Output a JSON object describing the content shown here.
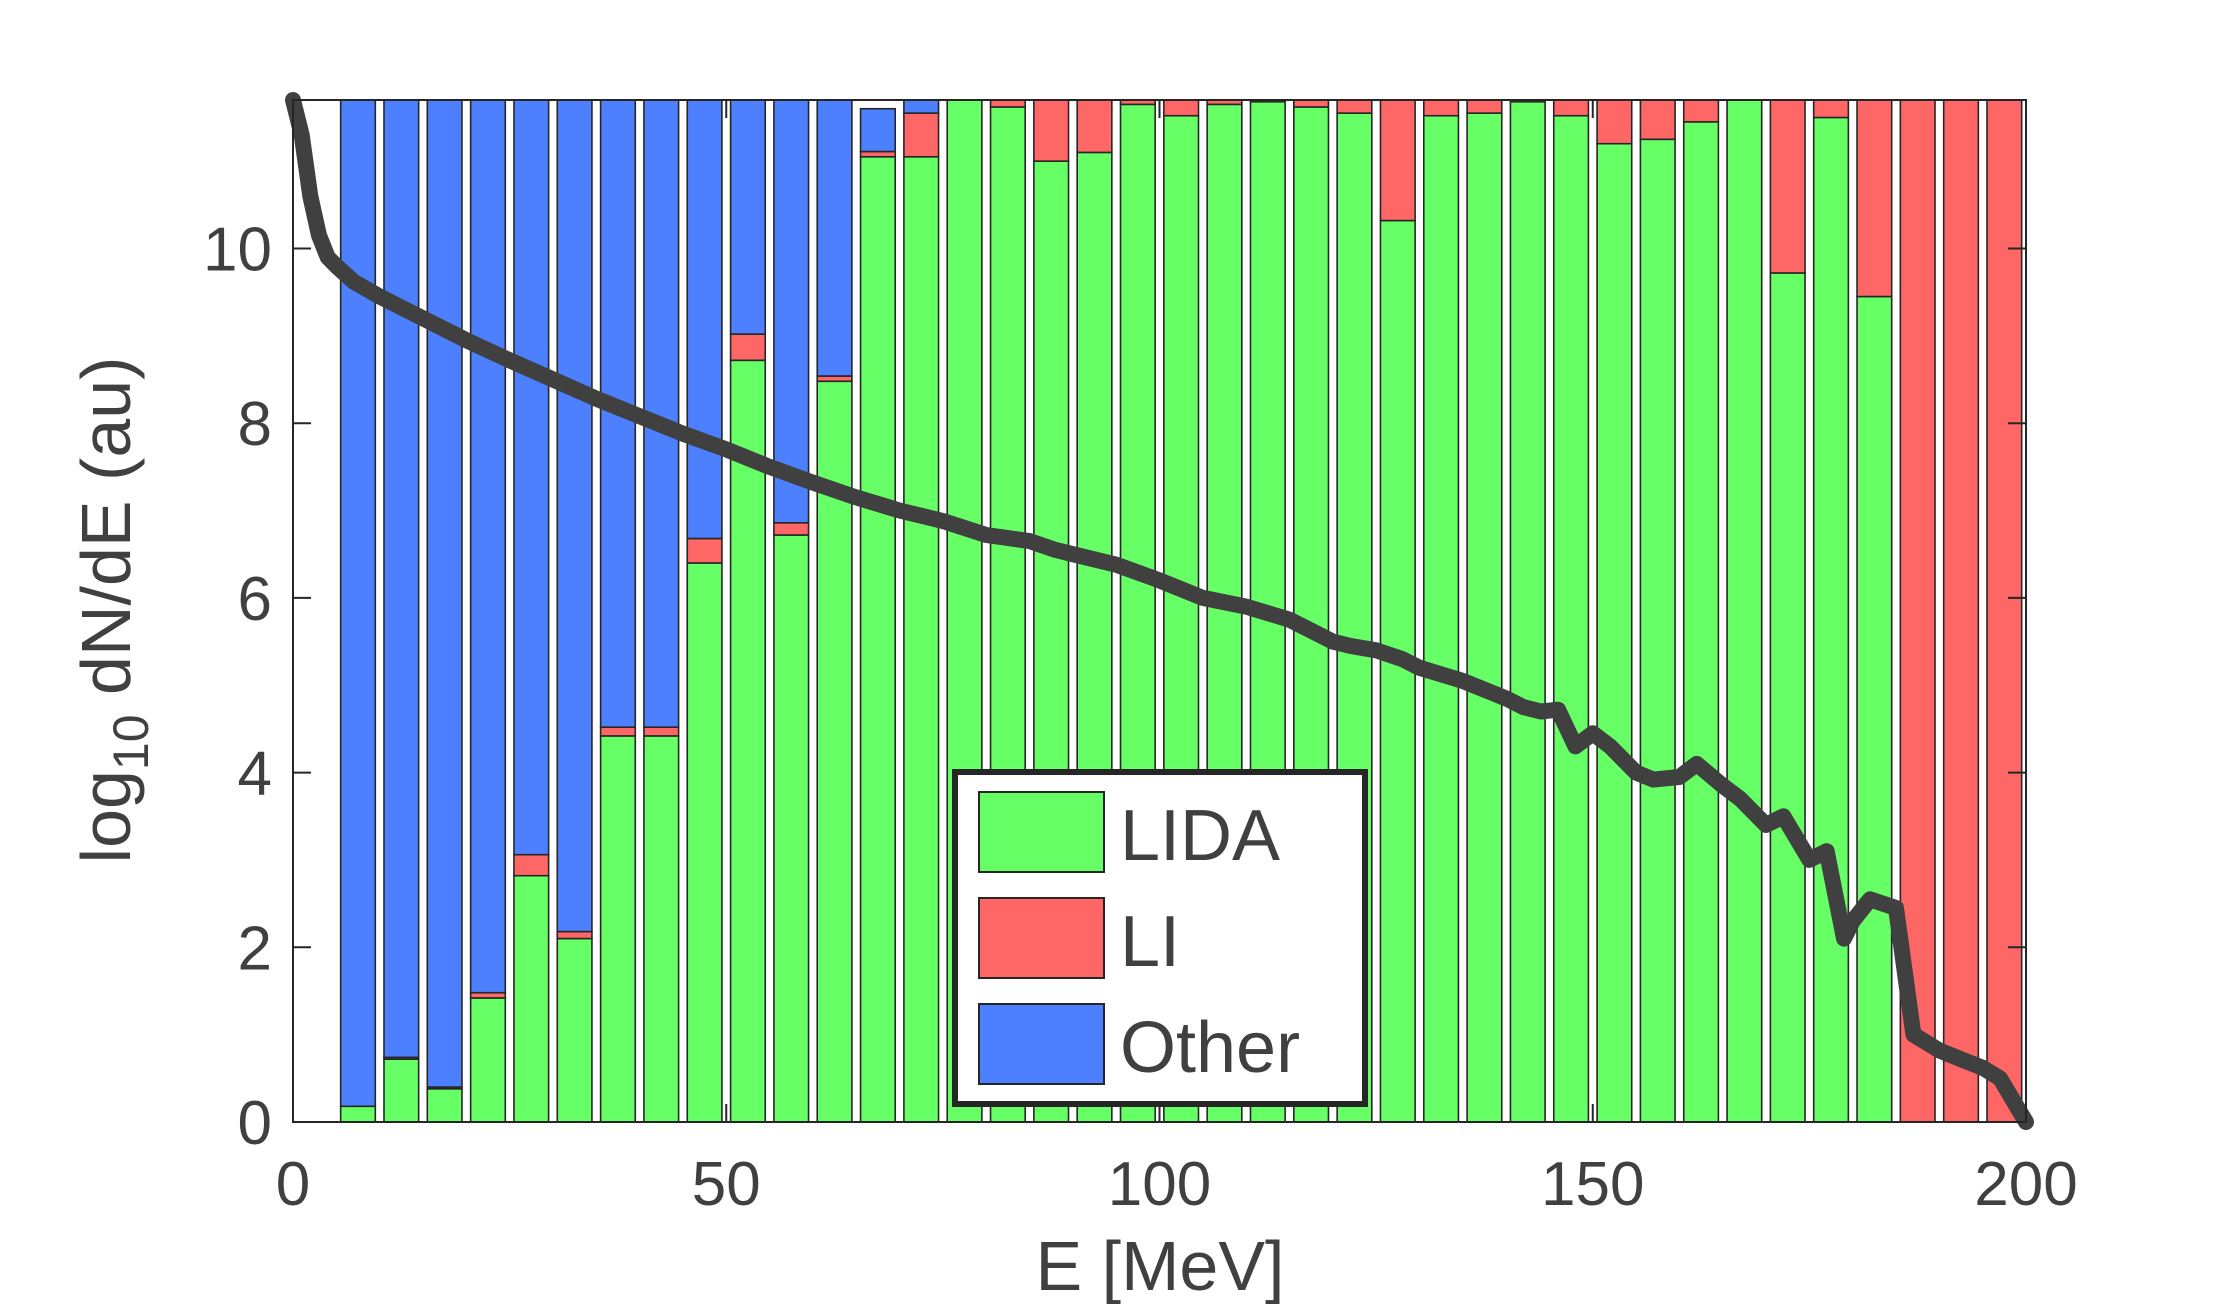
{
  "chart_data": {
    "type": "bar",
    "stacked": true,
    "xlabel": "E  [MeV]",
    "ylabel_main": "log",
    "ylabel_sub": "10",
    "ylabel_rest": " dN/dE (au)",
    "xlim": [
      0,
      200
    ],
    "ylim": [
      0,
      11.7
    ],
    "xticks": [
      0,
      50,
      100,
      150,
      200
    ],
    "yticks": [
      0,
      2,
      4,
      6,
      8,
      10
    ],
    "bar_width": 4,
    "categories": [
      7.5,
      12.5,
      17.5,
      22.5,
      27.5,
      32.5,
      37.5,
      42.5,
      47.5,
      52.5,
      57.5,
      62.5,
      67.5,
      72.5,
      77.5,
      82.5,
      87.5,
      92.5,
      97.5,
      102.5,
      107.5,
      112.5,
      117.5,
      122.5,
      127.5,
      132.5,
      137.5,
      142.5,
      147.5,
      152.5,
      157.5,
      162.5,
      167.5,
      172.5,
      177.5,
      182.5,
      187.5,
      192.5,
      197.5
    ],
    "series": [
      {
        "name": "LIDA",
        "color": "#66ff66",
        "values": [
          0.18,
          0.72,
          0.38,
          1.42,
          2.82,
          2.1,
          4.42,
          4.42,
          6.4,
          8.72,
          6.72,
          8.48,
          11.05,
          11.05,
          11.7,
          11.62,
          11.0,
          11.1,
          11.65,
          11.52,
          11.65,
          11.68,
          11.62,
          11.55,
          10.32,
          11.52,
          11.55,
          11.68,
          11.52,
          11.2,
          11.25,
          11.45,
          11.7,
          9.72,
          11.5,
          9.45,
          0,
          0,
          0
        ]
      },
      {
        "name": "LI",
        "color": "#ff6666",
        "values": [
          0,
          0.02,
          0.02,
          0.06,
          0.24,
          0.08,
          0.1,
          0.1,
          0.28,
          0.3,
          0.14,
          0.06,
          0.06,
          0.5,
          0.0,
          0.08,
          0.7,
          0.6,
          0.05,
          0.18,
          0.05,
          0.02,
          0.08,
          0.15,
          1.38,
          0.18,
          0.15,
          0.02,
          0.18,
          0.5,
          0.45,
          0.25,
          0.0,
          1.98,
          0.2,
          2.25,
          11.7,
          11.7,
          11.7
        ]
      },
      {
        "name": "Other",
        "color": "#4d80ff",
        "values": [
          11.52,
          10.96,
          11.3,
          10.22,
          8.64,
          9.52,
          7.18,
          7.18,
          5.02,
          2.68,
          4.84,
          3.16,
          0.49,
          0.15,
          0,
          0,
          0,
          0,
          0,
          0,
          0,
          0,
          0,
          0,
          0,
          0,
          0,
          0,
          0,
          0,
          0,
          0,
          0,
          0,
          0,
          0,
          0,
          0,
          0
        ]
      }
    ],
    "line": {
      "name": "log10 dN/dE",
      "color": "#404040",
      "x": [
        0,
        1,
        2,
        3,
        4,
        5,
        7,
        10,
        15,
        20,
        25,
        30,
        35,
        40,
        45,
        50,
        55,
        60,
        65,
        70,
        75,
        80,
        85,
        88,
        90,
        95,
        100,
        105,
        110,
        115,
        120,
        122,
        125,
        128,
        130,
        135,
        140,
        142,
        144,
        146,
        148,
        150,
        152,
        155,
        157,
        160,
        162,
        165,
        167,
        170,
        172,
        175,
        177,
        179,
        180,
        182,
        185,
        187,
        190,
        193,
        195,
        197,
        200
      ],
      "y": [
        11.7,
        11.3,
        10.6,
        10.15,
        9.9,
        9.8,
        9.62,
        9.45,
        9.2,
        8.95,
        8.72,
        8.5,
        8.28,
        8.08,
        7.88,
        7.7,
        7.5,
        7.32,
        7.15,
        7.0,
        6.88,
        6.72,
        6.65,
        6.55,
        6.5,
        6.38,
        6.2,
        6.0,
        5.9,
        5.75,
        5.5,
        5.45,
        5.4,
        5.3,
        5.2,
        5.05,
        4.85,
        4.75,
        4.7,
        4.72,
        4.3,
        4.45,
        4.3,
        4.0,
        3.92,
        3.95,
        4.1,
        3.85,
        3.7,
        3.4,
        3.5,
        3.0,
        3.1,
        2.1,
        2.3,
        2.55,
        2.45,
        1.0,
        0.82,
        0.7,
        0.62,
        0.5,
        0.0
      ]
    },
    "legend": {
      "position": "lower-center",
      "entries": [
        "LIDA",
        "LI",
        "Other"
      ]
    }
  }
}
